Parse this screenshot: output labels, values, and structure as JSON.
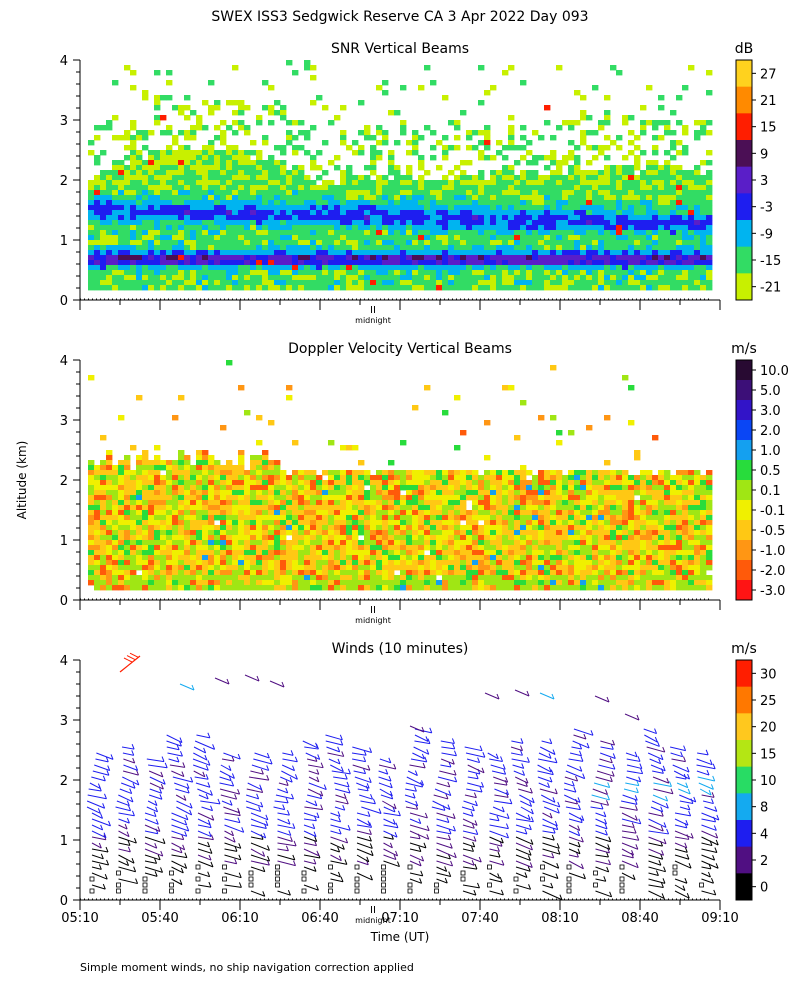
{
  "figure": {
    "title": "SWEX ISS3 Sedgwick Reserve CA   3 Apr 2022 Day 093",
    "y_axis_label": "Altitude (km)",
    "x_axis_label": "Time (UT)",
    "footnote": "Simple moment winds, no ship navigation correction applied",
    "midnight_label": "midnight",
    "midnight_marker": "II"
  },
  "chart_data": [
    {
      "type": "heatmap",
      "title": "SNR Vertical Beams",
      "colorbar_unit": "dB",
      "colorbar_ticks": [
        "27",
        "21",
        "15",
        "9",
        "3",
        "-3",
        "-9",
        "-15",
        "-21"
      ],
      "colorbar_colors": [
        "#ffd21e",
        "#ff8a00",
        "#ff1e00",
        "#4b0f55",
        "#5a1ec8",
        "#1e1ef0",
        "#00b4f0",
        "#32dc64",
        "#c8f000"
      ],
      "ylim": [
        0,
        4
      ],
      "yticks": [
        "0",
        "1",
        "2",
        "3",
        "4"
      ],
      "x_time_range": [
        "05:10",
        "09:10"
      ],
      "xlabel": "",
      "ylabel": ""
    },
    {
      "type": "heatmap",
      "title": "Doppler Velocity Vertical Beams",
      "colorbar_unit": "m/s",
      "colorbar_ticks": [
        "10.0",
        "5.0",
        "3.0",
        "2.0",
        "1.0",
        "0.5",
        "0.1",
        "-0.1",
        "-0.5",
        "-1.0",
        "-2.0",
        "-3.0"
      ],
      "colorbar_colors": [
        "#280a32",
        "#3c0f78",
        "#3214c8",
        "#0a46f5",
        "#14a0f0",
        "#28dc3c",
        "#a0e614",
        "#f0f000",
        "#ffc814",
        "#ff9614",
        "#ff5a0a",
        "#ff1414"
      ],
      "ylim": [
        0,
        4
      ],
      "yticks": [
        "0",
        "1",
        "2",
        "3",
        "4"
      ],
      "x_time_range": [
        "05:10",
        "09:10"
      ],
      "ylabel": "Altitude (km)"
    },
    {
      "type": "wind-barbs",
      "title": "Winds (10 minutes)",
      "colorbar_unit": "m/s",
      "colorbar_ticks": [
        "30",
        "25",
        "20",
        "15",
        "10",
        "8",
        "4",
        "2",
        "0"
      ],
      "colorbar_colors": [
        "#ff1e00",
        "#ff7800",
        "#ffc81e",
        "#b4e614",
        "#28dc64",
        "#14aaf0",
        "#1e1ef0",
        "#500f82",
        "#000000"
      ],
      "ylim": [
        0,
        4
      ],
      "yticks": [
        "0",
        "1",
        "2",
        "3",
        "4"
      ],
      "xticks": [
        "05:10",
        "05:40",
        "06:10",
        "06:40",
        "07:10",
        "07:40",
        "08:10",
        "08:40",
        "09:10"
      ],
      "xlabel": "Time (UT)"
    }
  ]
}
